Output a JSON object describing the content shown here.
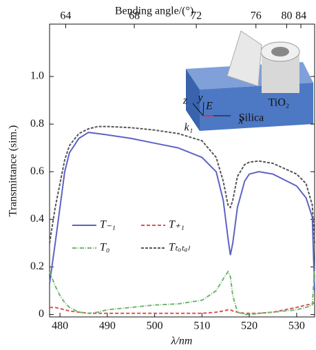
{
  "chart_data": {
    "type": "line",
    "y_label": "Transmittance (sim.)",
    "x_label": "λ/nm",
    "top_axis": {
      "label": "Bending angle/(°)",
      "ticks": [
        64,
        68,
        72,
        76,
        80,
        84
      ],
      "positions": [
        481.2,
        495.7,
        508.8,
        521.4,
        527.9,
        530.9
      ]
    },
    "xlim": [
      477.8,
      533.8
    ],
    "xticks": [
      480,
      490,
      500,
      510,
      520,
      530
    ],
    "ylim": [
      -0.01,
      1.22
    ],
    "yticks": [
      0,
      0.2,
      0.4,
      0.6,
      0.8,
      {
        "value": 1,
        "label": "1.0"
      }
    ],
    "x": [
      477.8,
      479,
      480,
      481,
      482,
      484,
      486,
      488,
      490,
      495,
      500,
      505,
      510,
      513,
      514.5,
      515.5,
      516,
      516.5,
      517.5,
      519,
      520,
      522,
      525,
      530,
      532,
      533.3,
      533.8
    ],
    "series": [
      {
        "name": "T₋₁",
        "color": "#5b63c4",
        "dash": "",
        "values": [
          0.13,
          0.3,
          0.45,
          0.6,
          0.68,
          0.74,
          0.765,
          0.76,
          0.755,
          0.74,
          0.72,
          0.7,
          0.66,
          0.6,
          0.48,
          0.32,
          0.25,
          0.3,
          0.45,
          0.56,
          0.59,
          0.6,
          0.59,
          0.54,
          0.49,
          0.41,
          0.1
        ]
      },
      {
        "name": "T₊₁",
        "color": "#d9534f",
        "dash": "5 3",
        "values": [
          0.03,
          0.03,
          0.025,
          0.02,
          0.015,
          0.01,
          0.005,
          0.005,
          0.005,
          0.005,
          0.005,
          0.005,
          0.005,
          0.01,
          0.015,
          0.02,
          0.02,
          0.015,
          0.01,
          0.005,
          0.005,
          0.005,
          0.01,
          0.03,
          0.04,
          0.045,
          0.05
        ]
      },
      {
        "name": "T₀",
        "color": "#6fb56f",
        "dash": "6 2 1 2",
        "values": [
          0.18,
          0.12,
          0.08,
          0.05,
          0.03,
          0.01,
          0.005,
          0.01,
          0.02,
          0.03,
          0.04,
          0.045,
          0.06,
          0.1,
          0.15,
          0.18,
          0.16,
          0.08,
          0.01,
          0,
          0,
          0.005,
          0.01,
          0.02,
          0.03,
          0.04,
          0.2
        ]
      },
      {
        "name": "Tₜₒₜₐₗ",
        "color": "#555555",
        "dash": "4 2",
        "values": [
          0.3,
          0.45,
          0.55,
          0.65,
          0.71,
          0.76,
          0.78,
          0.79,
          0.79,
          0.785,
          0.775,
          0.76,
          0.73,
          0.66,
          0.56,
          0.46,
          0.45,
          0.48,
          0.58,
          0.63,
          0.64,
          0.645,
          0.635,
          0.59,
          0.55,
          0.46,
          0.3
        ]
      }
    ],
    "inset": {
      "labels": [
        "z",
        "y",
        "k₁",
        "E",
        "x",
        "TiO₂",
        "Silica"
      ]
    }
  }
}
